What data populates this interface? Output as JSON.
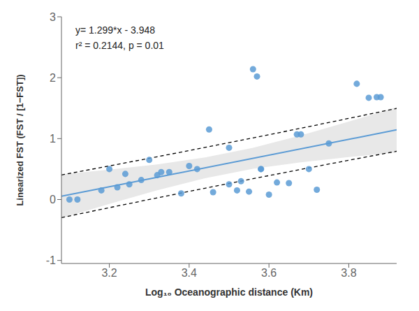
{
  "chart_data": {
    "type": "scatter",
    "xlabel": "Log₁₀ Oceanographic distance (Km)",
    "ylabel": "Linearized FST (FST / [1−FST])",
    "xlim": [
      3.08,
      3.92
    ],
    "ylim": [
      -1.05,
      3.0
    ],
    "xticks": [
      3.2,
      3.4,
      3.6,
      3.8
    ],
    "yticks": [
      -1,
      0,
      1,
      2,
      3
    ],
    "grid": false,
    "annotations": [
      "y= 1.299*x - 3.948",
      "r² = 0.2144, p = 0.01"
    ],
    "series": [
      {
        "type": "band",
        "color": "#e8e8e8",
        "x": [
          3.08,
          3.2,
          3.32,
          3.44,
          3.56,
          3.68,
          3.8,
          3.92
        ],
        "lower": [
          -0.30797,
          -0.07218,
          0.15222,
          0.35083,
          0.50336,
          0.6119,
          0.69718,
          0.77222
        ],
        "upper": [
          0.41381,
          0.48978,
          0.57714,
          0.69029,
          0.84952,
          1.05274,
          1.27922,
          1.51594
        ]
      },
      {
        "type": "line",
        "color": "black",
        "line_style": "dashed",
        "x": [
          3.08,
          3.2,
          3.32,
          3.44,
          3.56,
          3.68,
          3.8,
          3.92
        ],
        "values": [
          0.4033,
          0.55135,
          0.70198,
          0.8553,
          1.01136,
          1.17016,
          1.33164,
          1.49566
        ]
      },
      {
        "type": "line",
        "color": "black",
        "line_style": "dashed",
        "x": [
          3.08,
          3.2,
          3.32,
          3.44,
          3.56,
          3.68,
          3.8,
          3.92
        ],
        "values": [
          -0.29746,
          -0.13375,
          0.02738,
          0.18582,
          0.34152,
          0.49448,
          0.64476,
          0.7925
        ]
      },
      {
        "type": "line",
        "color": "#5b9bd5",
        "line_style": "solid",
        "x": [
          3.08,
          3.92
        ],
        "values": [
          0.05292,
          1.14408
        ]
      },
      {
        "type": "scatter",
        "color": "#5b9bd5",
        "x": [
          3.1,
          3.12,
          3.18,
          3.2,
          3.22,
          3.24,
          3.25,
          3.28,
          3.3,
          3.32,
          3.33,
          3.35,
          3.38,
          3.4,
          3.42,
          3.45,
          3.46,
          3.5,
          3.5,
          3.52,
          3.53,
          3.55,
          3.56,
          3.57,
          3.58,
          3.58,
          3.6,
          3.62,
          3.65,
          3.67,
          3.68,
          3.7,
          3.72,
          3.75,
          3.82,
          3.85,
          3.87,
          3.88
        ],
        "values": [
          0.0,
          0.0,
          0.15,
          0.5,
          0.2,
          0.42,
          0.25,
          0.32,
          0.65,
          0.4,
          0.45,
          0.45,
          0.1,
          0.55,
          0.5,
          1.15,
          0.12,
          0.85,
          0.25,
          0.15,
          0.3,
          0.13,
          2.14,
          2.02,
          0.5,
          0.5,
          0.08,
          0.28,
          0.27,
          1.07,
          1.07,
          0.5,
          0.16,
          0.92,
          1.9,
          1.67,
          1.68,
          1.68
        ]
      }
    ]
  }
}
